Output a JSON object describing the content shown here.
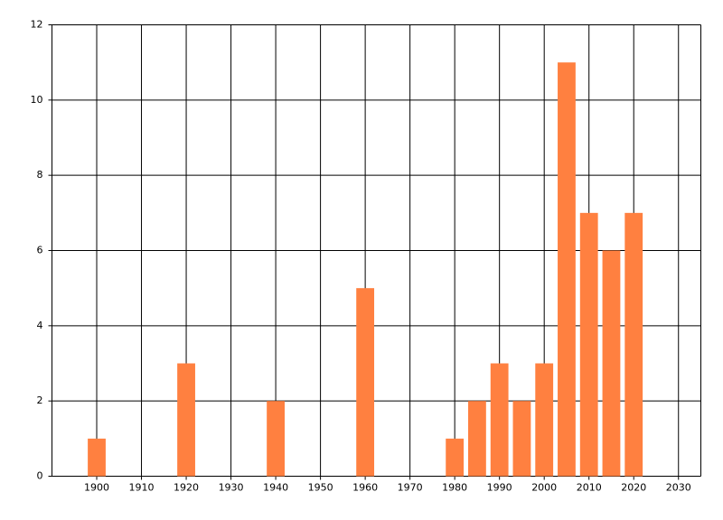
{
  "chart_data": {
    "type": "bar",
    "x": [
      1900,
      1920,
      1940,
      1960,
      1980,
      1985,
      1990,
      1995,
      2000,
      2005,
      2010,
      2015,
      2020
    ],
    "values": [
      1,
      3,
      2,
      5,
      1,
      2,
      3,
      2,
      3,
      11,
      7,
      6,
      7
    ],
    "color": "#ff8040",
    "xlim": [
      1890,
      2035
    ],
    "xticks": [
      1900,
      1910,
      1920,
      1930,
      1940,
      1950,
      1960,
      1970,
      1980,
      1990,
      2000,
      2010,
      2020,
      2030
    ],
    "ylim": [
      0,
      12
    ],
    "yticks": [
      0,
      2,
      4,
      6,
      8,
      10,
      12
    ],
    "grid": true
  }
}
